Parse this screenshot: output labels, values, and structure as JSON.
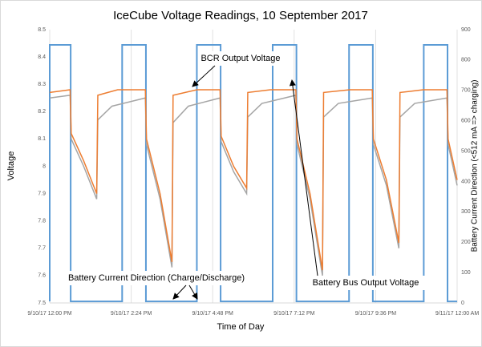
{
  "chart_data": {
    "type": "line",
    "title": "IceCube Voltage Readings, 10 September 2017",
    "x_label": "Time of Day",
    "y_label": "Voltage",
    "y2_label": "Battery Current Direction (<512 mA => charging)",
    "xlim": [
      "2017-09-10T12:00",
      "2017-09-11T00:00"
    ],
    "xticks": [
      {
        "value": "2017-09-10T12:00",
        "label": "9/10/17 12:00 PM"
      },
      {
        "value": "2017-09-10T14:24",
        "label": "9/10/17 2:24 PM"
      },
      {
        "value": "2017-09-10T16:48",
        "label": "9/10/17 4:48 PM"
      },
      {
        "value": "2017-09-10T19:12",
        "label": "9/10/17 7:12 PM"
      },
      {
        "value": "2017-09-10T21:36",
        "label": "9/10/17 9:36 PM"
      },
      {
        "value": "2017-09-11T00:00",
        "label": "9/11/17 12:00 AM"
      }
    ],
    "ylim": [
      7.5,
      8.5
    ],
    "yticks": [
      7.5,
      7.6,
      7.7,
      7.8,
      7.9,
      8,
      8.1,
      8.2,
      8.3,
      8.4,
      8.5
    ],
    "y2lim": [
      0,
      900
    ],
    "y2ticks": [
      0,
      100,
      200,
      300,
      400,
      500,
      600,
      700,
      800,
      900
    ],
    "grid": true,
    "series": [
      {
        "name": "BCR Output Voltage",
        "color": "#ed7d31",
        "x": [
          "2017-09-10T12:00",
          "2017-09-10T12:36",
          "2017-09-10T12:38",
          "2017-09-10T13:00",
          "2017-09-10T13:23",
          "2017-09-10T13:25",
          "2017-09-10T14:00",
          "2017-09-10T14:49",
          "2017-09-10T14:51",
          "2017-09-10T15:15",
          "2017-09-10T15:36",
          "2017-09-10T15:38",
          "2017-09-10T16:20",
          "2017-09-10T17:01",
          "2017-09-10T17:03",
          "2017-09-10T17:25",
          "2017-09-10T17:48",
          "2017-09-10T17:50",
          "2017-09-10T18:30",
          "2017-09-10T19:15",
          "2017-09-10T19:17",
          "2017-09-10T19:40",
          "2017-09-10T20:02",
          "2017-09-10T20:04",
          "2017-09-10T20:50",
          "2017-09-10T21:30",
          "2017-09-10T21:32",
          "2017-09-10T21:55",
          "2017-09-10T22:17",
          "2017-09-10T22:19",
          "2017-09-10T23:00",
          "2017-09-10T23:42",
          "2017-09-10T23:44",
          "2017-09-11T00:00"
        ],
        "values": [
          8.27,
          8.28,
          8.12,
          8.02,
          7.9,
          8.26,
          8.28,
          8.28,
          8.1,
          7.9,
          7.65,
          8.26,
          8.28,
          8.28,
          8.11,
          8.0,
          7.92,
          8.27,
          8.28,
          8.28,
          8.1,
          7.9,
          7.62,
          8.27,
          8.28,
          8.28,
          8.1,
          7.95,
          7.72,
          8.27,
          8.28,
          8.28,
          8.1,
          7.95
        ]
      },
      {
        "name": "Battery Bus Output Voltage",
        "color": "#a5a5a5",
        "x": [
          "2017-09-10T12:00",
          "2017-09-10T12:36",
          "2017-09-10T12:38",
          "2017-09-10T13:00",
          "2017-09-10T13:23",
          "2017-09-10T13:25",
          "2017-09-10T13:50",
          "2017-09-10T14:49",
          "2017-09-10T14:51",
          "2017-09-10T15:15",
          "2017-09-10T15:36",
          "2017-09-10T15:38",
          "2017-09-10T16:05",
          "2017-09-10T17:01",
          "2017-09-10T17:03",
          "2017-09-10T17:25",
          "2017-09-10T17:48",
          "2017-09-10T17:50",
          "2017-09-10T18:15",
          "2017-09-10T19:15",
          "2017-09-10T19:17",
          "2017-09-10T19:40",
          "2017-09-10T20:02",
          "2017-09-10T20:04",
          "2017-09-10T20:30",
          "2017-09-10T21:30",
          "2017-09-10T21:32",
          "2017-09-10T21:55",
          "2017-09-10T22:17",
          "2017-09-10T22:19",
          "2017-09-10T22:45",
          "2017-09-10T23:42",
          "2017-09-10T23:44",
          "2017-09-11T00:00"
        ],
        "values": [
          8.25,
          8.26,
          8.1,
          8.0,
          7.88,
          8.17,
          8.22,
          8.25,
          8.08,
          7.88,
          7.63,
          8.16,
          8.22,
          8.25,
          8.09,
          7.98,
          7.9,
          8.18,
          8.23,
          8.26,
          8.08,
          7.88,
          7.6,
          8.18,
          8.23,
          8.25,
          8.08,
          7.93,
          7.7,
          8.18,
          8.23,
          8.25,
          8.08,
          7.93
        ]
      },
      {
        "name": "Battery Current Direction (Charge/Discharge)",
        "color": "#5b9bd5",
        "axis": "y2",
        "x": [
          "2017-09-10T12:00",
          "2017-09-10T12:00",
          "2017-09-10T12:37",
          "2017-09-10T12:37",
          "2017-09-10T14:08",
          "2017-09-10T14:08",
          "2017-09-10T14:50",
          "2017-09-10T14:50",
          "2017-09-10T16:20",
          "2017-09-10T16:20",
          "2017-09-10T17:02",
          "2017-09-10T17:02",
          "2017-09-10T18:34",
          "2017-09-10T18:34",
          "2017-09-10T19:16",
          "2017-09-10T19:16",
          "2017-09-10T20:49",
          "2017-09-10T20:49",
          "2017-09-10T21:31",
          "2017-09-10T21:31",
          "2017-09-10T23:01",
          "2017-09-10T23:01",
          "2017-09-10T23:43",
          "2017-09-10T23:43",
          "2017-09-11T00:00"
        ],
        "values": [
          5,
          850,
          850,
          5,
          5,
          850,
          850,
          5,
          5,
          850,
          850,
          5,
          5,
          850,
          850,
          5,
          5,
          850,
          850,
          5,
          5,
          850,
          850,
          5,
          5
        ]
      }
    ]
  }
}
